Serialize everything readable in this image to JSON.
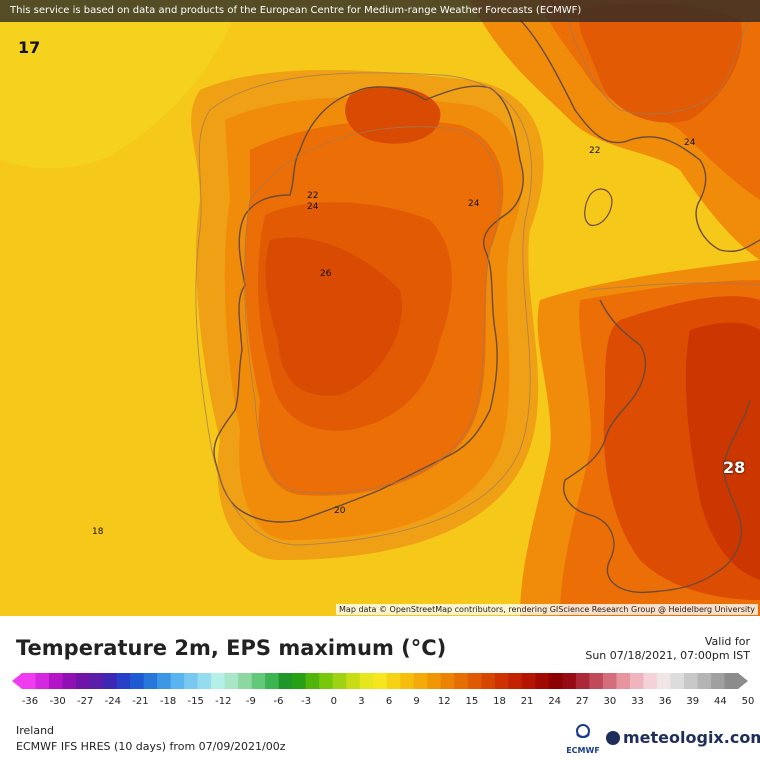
{
  "map": {
    "attribution_top": "This service is based on data and products of the European Centre for Medium-range Weather Forecasts (ECMWF)",
    "attribution_bottom": "Map data © OpenStreetMap contributors, rendering GIScience Research Group @ Heidelberg University",
    "corner_min": "17",
    "corner_max": "28",
    "contour_labels": [
      "22",
      "24",
      "24",
      "22",
      "24",
      "26",
      "20",
      "18"
    ]
  },
  "legend": {
    "title": "Temperature 2m, EPS maximum (°C)",
    "valid_label": "Valid for",
    "valid_date": "Sun 07/18/2021, 07:00pm IST",
    "scale_ticks": [
      "-36",
      "-30",
      "-27",
      "-24",
      "-21",
      "-18",
      "-15",
      "-12",
      "-9",
      "-6",
      "-3",
      "0",
      "3",
      "6",
      "9",
      "12",
      "15",
      "18",
      "21",
      "24",
      "27",
      "30",
      "33",
      "36",
      "39",
      "44",
      "50"
    ],
    "scale_colors": [
      "#f03cf0",
      "#d428e0",
      "#b414c8",
      "#9010b4",
      "#7014a8",
      "#5a1ea8",
      "#3c28b4",
      "#2840c8",
      "#1e5ad2",
      "#2878dc",
      "#3c96e6",
      "#5ab4f0",
      "#78c8f0",
      "#96dcf0",
      "#b4f0e6",
      "#a8e6c8",
      "#8cd8a0",
      "#64c87a",
      "#3cb450",
      "#1e9628",
      "#28a014",
      "#50b40a",
      "#78c80a",
      "#a0d214",
      "#c8dc14",
      "#e6e61e",
      "#f5e61e",
      "#f5d214",
      "#f5be0a",
      "#f5aa0a",
      "#f09600",
      "#eb8200",
      "#e66e00",
      "#e05a00",
      "#d74600",
      "#cd3200",
      "#c32200",
      "#b41400",
      "#a00a00",
      "#8c0000",
      "#960a14",
      "#aa2837",
      "#c04a5a",
      "#d46e7d",
      "#e694a0",
      "#f0b4be",
      "#f5d2d7",
      "#f0e6e6",
      "#dcdcdc",
      "#c8c8c8",
      "#b4b4b4",
      "#a0a0a0",
      "#8c8c8c"
    ],
    "region": "Ireland",
    "model_run": "ECMWF IFS HRES (10 days) from 07/09/2021/00z",
    "ecmwf_text": "ECMWF",
    "brand": "meteologix.com"
  }
}
